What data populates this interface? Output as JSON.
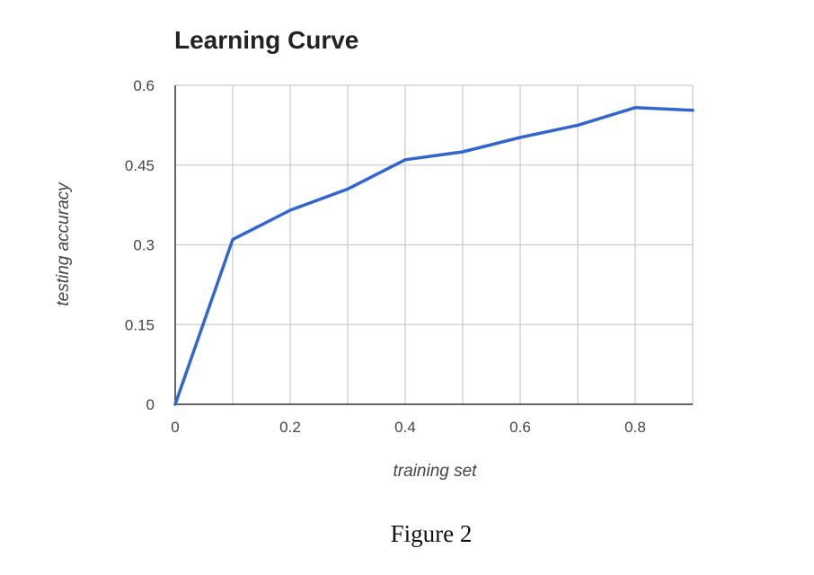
{
  "figure_caption": "Figure 2",
  "colors": {
    "series": "#3366cc",
    "grid": "#cccccc",
    "axis": "#333333"
  },
  "chart_data": {
    "type": "line",
    "title": "Learning Curve",
    "xlabel": "training set",
    "ylabel": "testing accuracy",
    "xlim": [
      0,
      0.9
    ],
    "ylim": [
      0,
      0.6
    ],
    "x_ticks": [
      "0",
      "0.2",
      "0.4",
      "0.6",
      "0.8"
    ],
    "x_tick_values": [
      0,
      0.2,
      0.4,
      0.6,
      0.8
    ],
    "y_ticks": [
      "0",
      "0.15",
      "0.3",
      "0.45",
      "0.6"
    ],
    "y_tick_values": [
      0,
      0.15,
      0.3,
      0.45,
      0.6
    ],
    "grid": true,
    "legend": "none",
    "x": [
      0,
      0.1,
      0.2,
      0.3,
      0.4,
      0.5,
      0.6,
      0.7,
      0.8,
      0.9
    ],
    "series": [
      {
        "values": [
          0,
          0.31,
          0.365,
          0.405,
          0.46,
          0.475,
          0.502,
          0.525,
          0.558,
          0.553
        ]
      }
    ]
  }
}
